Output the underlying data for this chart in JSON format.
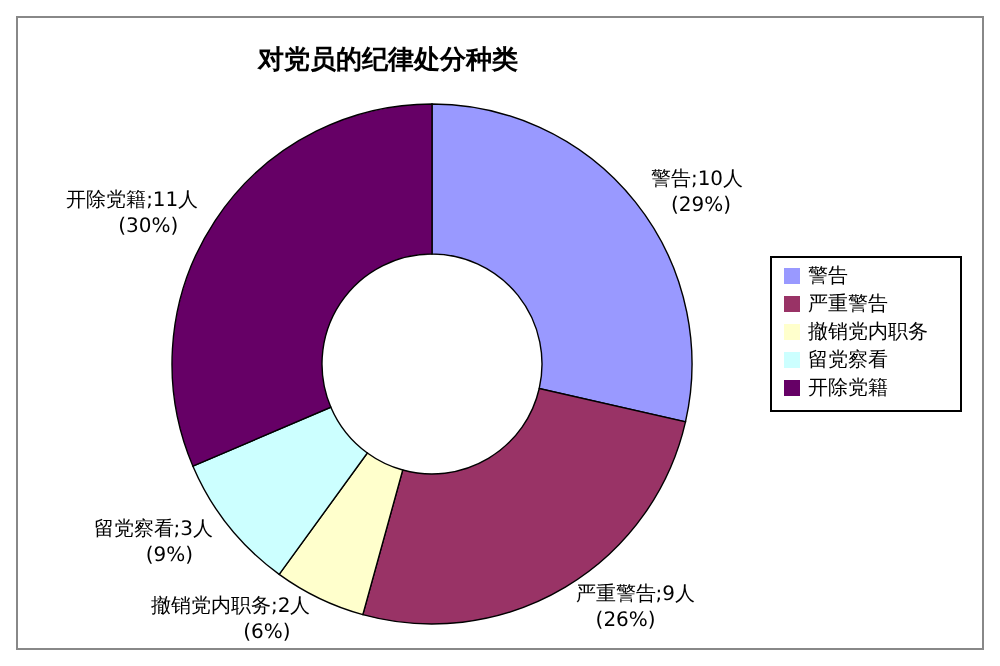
{
  "chart_data": {
    "type": "donut",
    "title": "对党员的纪律处分种类",
    "categories": [
      "警告",
      "严重警告",
      "撤销党内职务",
      "留党察看",
      "开除党籍"
    ],
    "values": [
      10,
      9,
      2,
      3,
      11
    ],
    "colors": [
      "#9999ff",
      "#993366",
      "#ffffcc",
      "#ccffff",
      "#660066"
    ],
    "value_labels": [
      "警告;10人 (29%)",
      "严重警告;9人 (26%)",
      "撤销党内职务;2人 (6%)",
      "留党察看;3人 (9%)",
      "开除党籍;11人 (30%)"
    ],
    "legend": "right"
  }
}
